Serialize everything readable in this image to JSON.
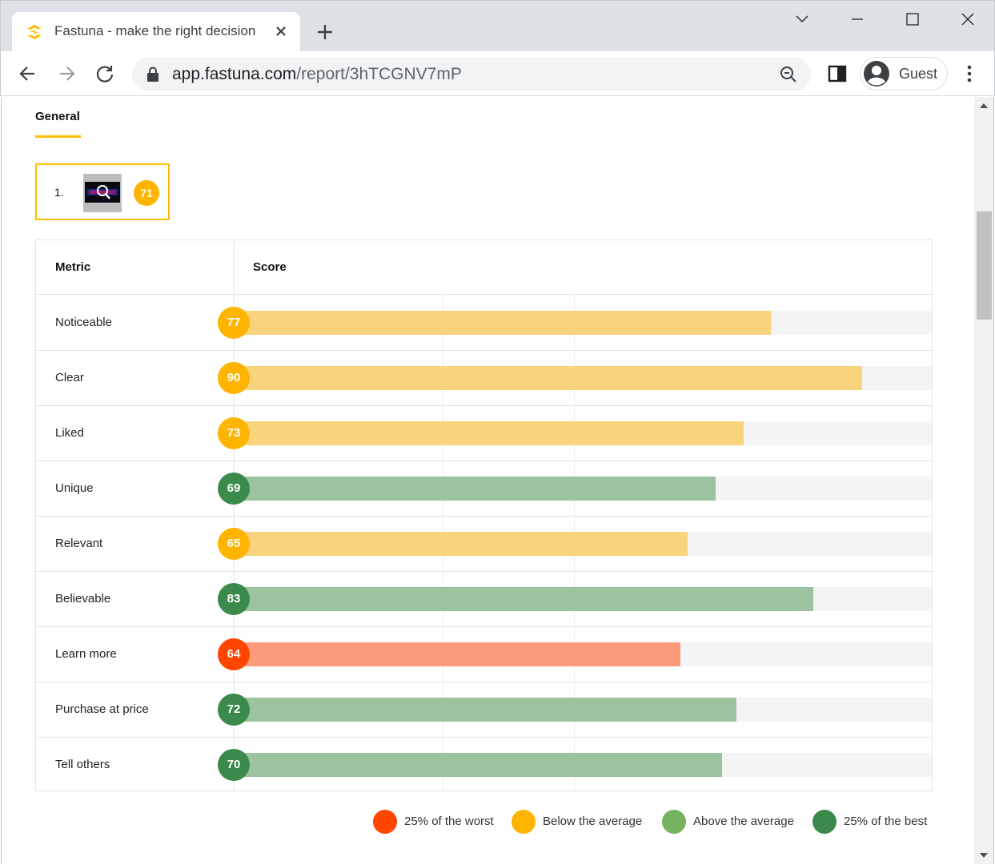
{
  "browser": {
    "tab_title": "Fastuna - make the right decision",
    "url_host": "app.fastuna.com",
    "url_path": "/report/3hTCGNV7mP",
    "profile_label": "Guest"
  },
  "page": {
    "section_tab": "General",
    "variant": {
      "index": "1.",
      "score": "71",
      "score_color": "#ffb400"
    },
    "table": {
      "col_metric": "Metric",
      "col_score": "Score",
      "rows": [
        {
          "label": "Noticeable",
          "score": "77",
          "value": 77,
          "category": "below"
        },
        {
          "label": "Clear",
          "score": "90",
          "value": 90,
          "category": "below"
        },
        {
          "label": "Liked",
          "score": "73",
          "value": 73,
          "category": "below"
        },
        {
          "label": "Unique",
          "score": "69",
          "value": 69,
          "category": "best"
        },
        {
          "label": "Relevant",
          "score": "65",
          "value": 65,
          "category": "below"
        },
        {
          "label": "Believable",
          "score": "83",
          "value": 83,
          "category": "best"
        },
        {
          "label": "Learn more",
          "score": "64",
          "value": 64,
          "category": "worst"
        },
        {
          "label": "Purchase at price",
          "score": "72",
          "value": 72,
          "category": "best"
        },
        {
          "label": "Tell others",
          "score": "70",
          "value": 70,
          "category": "best"
        }
      ]
    },
    "legend": [
      {
        "key": "worst",
        "label": "25% of the worst",
        "dot": "#ff4500",
        "badge": "#ff4500",
        "bar": "#fc9b7a"
      },
      {
        "key": "below",
        "label": "Below the average",
        "dot": "#ffb400",
        "badge": "#ffb400",
        "bar": "#fad47c"
      },
      {
        "key": "above",
        "label": "Above the average",
        "dot": "#76b35e",
        "badge": "#76b35e",
        "bar": "#b7d7a8"
      },
      {
        "key": "best",
        "label": "25% of the best",
        "dot": "#3b8a4c",
        "badge": "#3b8a4c",
        "bar": "#9bc39f"
      }
    ]
  }
}
